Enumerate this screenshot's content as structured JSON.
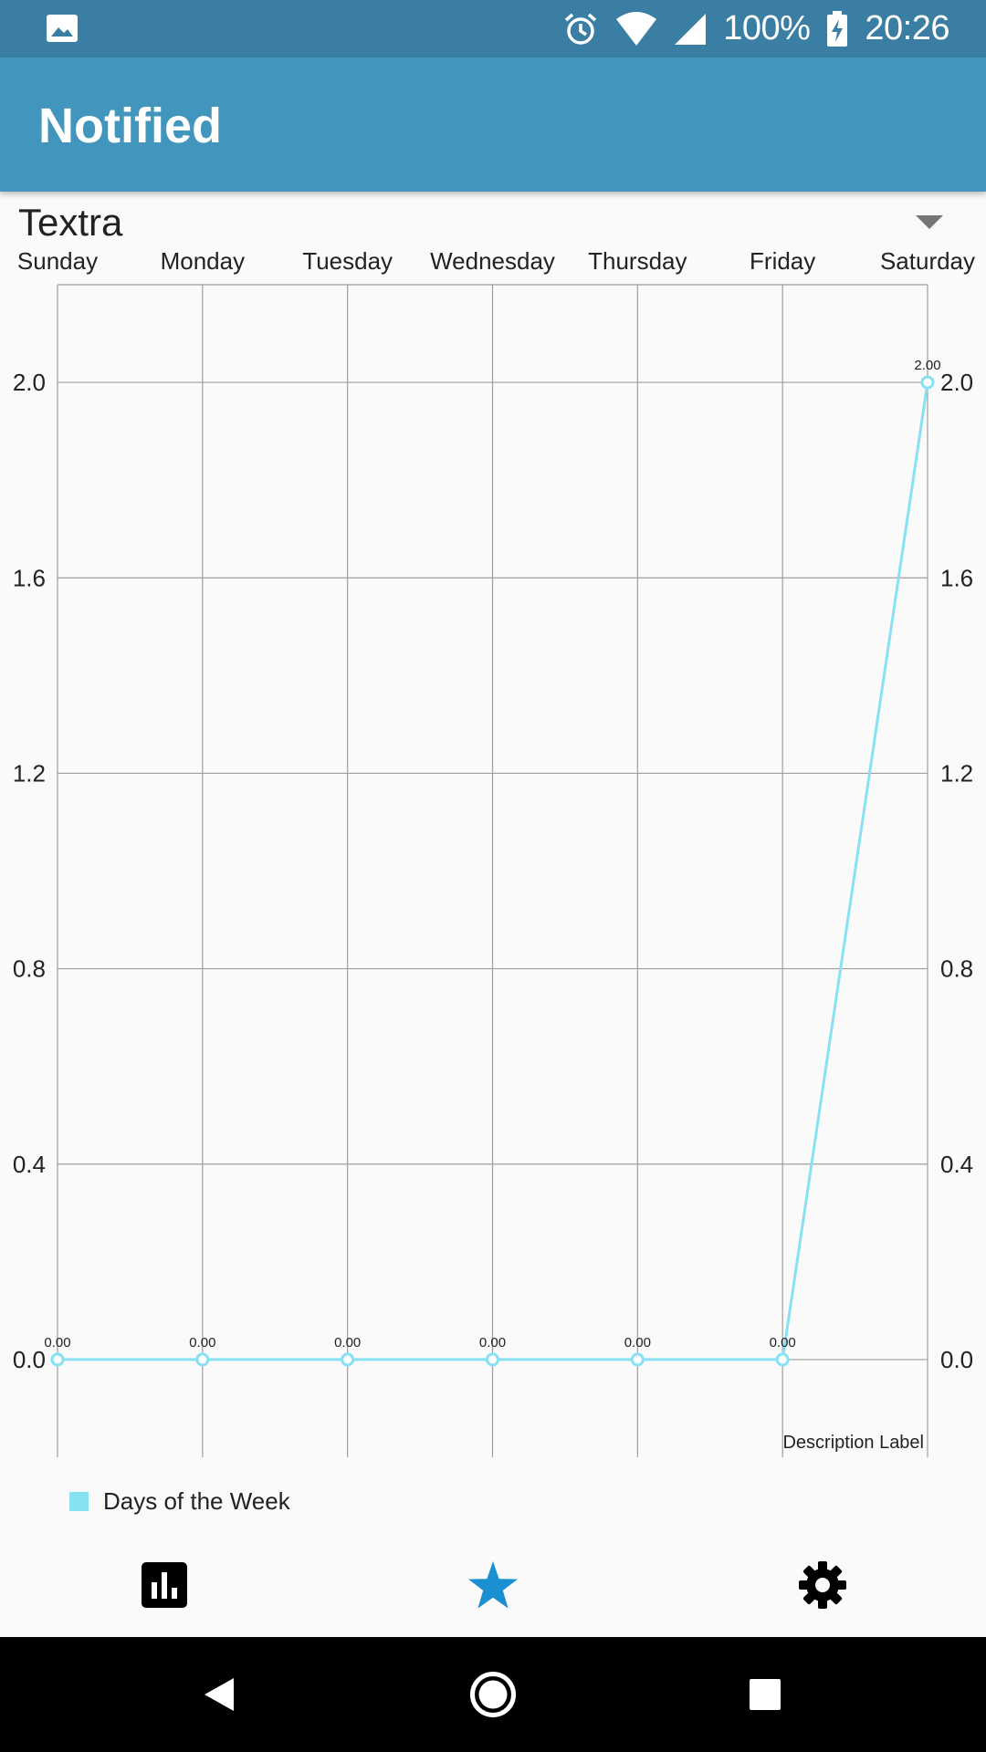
{
  "status_bar": {
    "battery": "100%",
    "time": "20:26",
    "icons": [
      "image-icon",
      "alarm-icon",
      "wifi-icon",
      "signal-icon",
      "battery-charging-icon"
    ]
  },
  "app_bar": {
    "title": "Notified"
  },
  "spinner": {
    "selected": "Textra",
    "icon": "dropdown-arrow-icon"
  },
  "chart_data": {
    "type": "line",
    "categories": [
      "Sunday",
      "Monday",
      "Tuesday",
      "Wednesday",
      "Thursday",
      "Friday",
      "Saturday"
    ],
    "series": [
      {
        "name": "Days of the Week",
        "values": [
          0,
          0,
          0,
          0,
          0,
          0,
          2
        ],
        "color": "#88e1f2"
      }
    ],
    "data_labels": [
      "0.00",
      "0.00",
      "0.00",
      "0.00",
      "0.00",
      "0.00",
      "2.00"
    ],
    "y_ticks": [
      "0.0",
      "0.4",
      "0.8",
      "1.2",
      "1.6",
      "2.0"
    ],
    "ylim": [
      -0.2,
      2.2
    ],
    "description": "Description Label",
    "grid": true,
    "legend_position": "bottom-left"
  },
  "bottom_nav": {
    "items": [
      {
        "icon": "bar-chart-icon",
        "active": false
      },
      {
        "icon": "star-icon",
        "active": true
      },
      {
        "icon": "gear-icon",
        "active": false
      }
    ],
    "active_color": "#1a8fd1"
  },
  "system_nav": {
    "icons": [
      "back-icon",
      "home-icon",
      "recents-icon"
    ]
  }
}
